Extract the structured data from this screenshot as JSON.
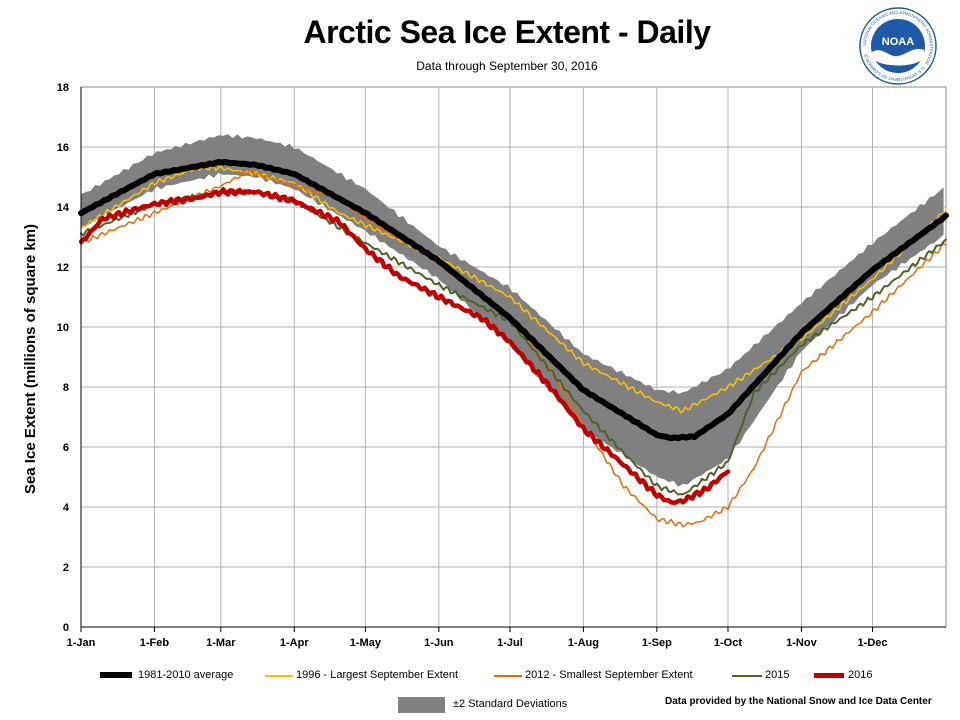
{
  "chart_data": {
    "type": "line",
    "title": "Arctic Sea Ice Extent - Daily",
    "subtitle": "Data through September 30, 2016",
    "ylabel": "Sea Ice Extent (millions of square km)",
    "xlabel": "",
    "x_unit": "day of year",
    "ylim": [
      0,
      18
    ],
    "xlim": [
      1,
      366
    ],
    "grid": true,
    "yticks": [
      0,
      2,
      4,
      6,
      8,
      10,
      12,
      14,
      16,
      18
    ],
    "xticks": [
      {
        "day": 1,
        "label": "1-Jan"
      },
      {
        "day": 32,
        "label": "1-Feb"
      },
      {
        "day": 60,
        "label": "1-Mar"
      },
      {
        "day": 91,
        "label": "1-Apr"
      },
      {
        "day": 121,
        "label": "1-May"
      },
      {
        "day": 152,
        "label": "1-Jun"
      },
      {
        "day": 182,
        "label": "1-Jul"
      },
      {
        "day": 213,
        "label": "1-Aug"
      },
      {
        "day": 244,
        "label": "1-Sep"
      },
      {
        "day": 274,
        "label": "1-Oct"
      },
      {
        "day": 305,
        "label": "1-Nov"
      },
      {
        "day": 335,
        "label": "1-Dec"
      }
    ],
    "band": {
      "name": "±2 Standard Deviations",
      "color": "#808080",
      "x": [
        1,
        32,
        60,
        75,
        91,
        121,
        152,
        182,
        213,
        244,
        255,
        274,
        305,
        335,
        366
      ],
      "lower": [
        13.3,
        14.6,
        15.1,
        15.0,
        14.6,
        13.2,
        11.6,
        9.4,
        6.6,
        5.0,
        4.7,
        5.6,
        9.2,
        11.4,
        13.1
      ],
      "upper": [
        14.4,
        15.8,
        16.4,
        16.3,
        16.0,
        14.6,
        12.7,
        11.3,
        9.1,
        7.9,
        7.8,
        8.6,
        10.8,
        12.8,
        14.7
      ]
    },
    "series": [
      {
        "name": "1996 - Largest September Extent",
        "color": "#ffc000",
        "width": 1.5,
        "x": [
          1,
          32,
          50,
          60,
          75,
          91,
          110,
          121,
          152,
          182,
          213,
          244,
          255,
          274,
          305,
          335,
          366
        ],
        "values": [
          13.3,
          14.8,
          15.3,
          15.3,
          15.1,
          14.8,
          13.8,
          13.4,
          12.3,
          11.0,
          8.8,
          7.5,
          7.2,
          8.0,
          9.6,
          11.6,
          13.9
        ]
      },
      {
        "name": "2012 - Smallest September Extent",
        "color": "#e36c09",
        "width": 1.5,
        "x": [
          1,
          32,
          60,
          72,
          91,
          110,
          121,
          152,
          182,
          200,
          213,
          230,
          244,
          255,
          262,
          274,
          285,
          305,
          335,
          366
        ],
        "values": [
          12.8,
          13.8,
          14.7,
          15.2,
          14.7,
          14.3,
          13.6,
          12.2,
          10.3,
          8.5,
          6.7,
          4.7,
          3.6,
          3.4,
          3.5,
          4.0,
          5.3,
          8.5,
          10.5,
          12.8
        ]
      },
      {
        "name": "2015",
        "color": "#4f6228",
        "width": 2,
        "x": [
          1,
          32,
          60,
          75,
          91,
          121,
          152,
          182,
          213,
          230,
          244,
          255,
          274,
          285,
          305,
          335,
          366
        ],
        "values": [
          13.1,
          14.1,
          14.5,
          14.5,
          14.2,
          12.8,
          11.4,
          10.2,
          7.2,
          5.8,
          4.7,
          4.4,
          5.5,
          7.8,
          9.4,
          11.0,
          12.9
        ]
      },
      {
        "name": "2016",
        "color": "#c00000",
        "width": 4.5,
        "x": [
          1,
          10,
          32,
          50,
          60,
          75,
          91,
          110,
          121,
          135,
          152,
          170,
          182,
          200,
          213,
          230,
          244,
          250,
          255,
          265,
          274
        ],
        "values": [
          12.8,
          13.6,
          14.1,
          14.3,
          14.5,
          14.5,
          14.2,
          13.5,
          12.6,
          11.7,
          11.0,
          10.3,
          9.5,
          7.9,
          6.6,
          5.4,
          4.4,
          4.15,
          4.2,
          4.6,
          5.2
        ]
      },
      {
        "name": "1981-2010 average",
        "color": "#000000",
        "width": 6,
        "x": [
          1,
          32,
          60,
          75,
          91,
          121,
          152,
          182,
          213,
          244,
          250,
          260,
          274,
          305,
          335,
          366
        ],
        "values": [
          13.8,
          15.1,
          15.5,
          15.4,
          15.1,
          13.8,
          12.2,
          10.3,
          7.9,
          6.4,
          6.3,
          6.35,
          7.1,
          9.8,
          11.9,
          13.7
        ]
      }
    ],
    "legend": [
      {
        "label": "1981-2010 average",
        "color": "#000000",
        "width": 6
      },
      {
        "label": "1996 - Largest September Extent",
        "color": "#ffc000",
        "width": 1.5
      },
      {
        "label": "2012 - Smallest September Extent",
        "color": "#e36c09",
        "width": 1.5
      },
      {
        "label": "2015",
        "color": "#4f6228",
        "width": 2
      },
      {
        "label": "2016",
        "color": "#c00000",
        "width": 4.5
      }
    ],
    "band_legend_label": "±2 Standard Deviations",
    "credit": "Data provided by the National Snow and Ice Data Center"
  },
  "logo": {
    "text": "NOAA",
    "ring_text": "NATIONAL OCEANIC AND ATMOSPHERIC ADMINISTRATION · U.S. DEPARTMENT OF COMMERCE",
    "color": "#1f5aa6"
  }
}
